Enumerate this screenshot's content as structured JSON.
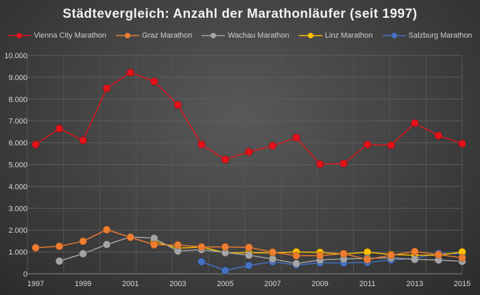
{
  "chart_data": {
    "type": "line",
    "title": "Städtevergleich: Anzahl der Marathonläufer (seit 1997)",
    "xlabel": "",
    "ylabel": "",
    "x": [
      1997,
      1998,
      1999,
      2000,
      2001,
      2002,
      2003,
      2004,
      2005,
      2006,
      2007,
      2008,
      2009,
      2010,
      2011,
      2012,
      2013,
      2014,
      2015
    ],
    "x_tick_labels": [
      "1997",
      "1999",
      "2001",
      "2003",
      "2005",
      "2007",
      "2009",
      "2011",
      "2013",
      "2015"
    ],
    "y_tick_labels": [
      "0",
      "1.000",
      "2.000",
      "3.000",
      "4.000",
      "5.000",
      "6.000",
      "7.000",
      "8.000",
      "9.000",
      "10.000"
    ],
    "ylim": [
      0,
      10000
    ],
    "grid": true,
    "legend_position": "top",
    "series": [
      {
        "name": "Vienna City Marathon",
        "color": "#e3131b",
        "values": [
          5920,
          6650,
          6110,
          8500,
          9220,
          8810,
          7740,
          5920,
          5230,
          5580,
          5860,
          6240,
          5020,
          5050,
          5920,
          5890,
          6900,
          6330,
          5960
        ]
      },
      {
        "name": "Graz Marathon",
        "color": "#ed7d31",
        "values": [
          1190,
          1260,
          1490,
          2020,
          1670,
          1330,
          1320,
          1230,
          1230,
          1210,
          990,
          830,
          830,
          920,
          650,
          850,
          1020,
          880,
          730
        ]
      },
      {
        "name": "Wachau Marathon",
        "color": "#a5a5a5",
        "values": [
          null,
          580,
          920,
          1340,
          1690,
          1630,
          1040,
          1110,
          970,
          850,
          680,
          470,
          630,
          680,
          710,
          730,
          660,
          630,
          570
        ]
      },
      {
        "name": "Linz Marathon",
        "color": "#ffc000",
        "values": [
          null,
          null,
          null,
          null,
          null,
          1480,
          1170,
          1230,
          960,
          960,
          960,
          1000,
          980,
          900,
          990,
          880,
          850,
          850,
          1000
        ]
      },
      {
        "name": "Salzburg Marathon",
        "color": "#4472c4",
        "values": [
          null,
          null,
          null,
          null,
          null,
          null,
          null,
          550,
          150,
          380,
          550,
          400,
          500,
          500,
          520,
          630,
          710,
          940,
          900
        ]
      }
    ]
  }
}
